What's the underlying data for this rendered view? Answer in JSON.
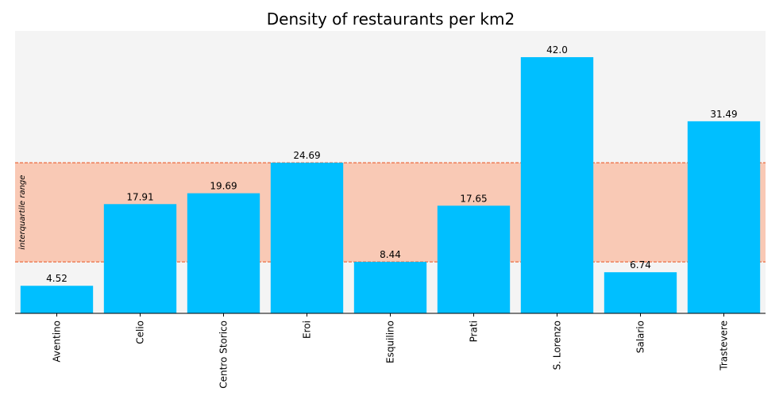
{
  "chart_data": {
    "type": "bar",
    "title": "Density of restaurants per km2",
    "xlabel": "",
    "ylabel": "",
    "categories": [
      "Aventino",
      "Celio",
      "Centro Storico",
      "Eroi",
      "Esquilino",
      "Prati",
      "S. Lorenzo",
      "Salario",
      "Trastevere"
    ],
    "values": [
      4.52,
      17.91,
      19.69,
      24.69,
      8.44,
      17.65,
      42.0,
      6.74,
      31.49
    ],
    "value_labels": [
      "4.52",
      "17.91",
      "19.69",
      "24.69",
      "8.44",
      "17.65",
      "42.0",
      "6.74",
      "31.49"
    ],
    "ylim": [
      0,
      46.3
    ],
    "grid": false,
    "y_axis_visible": false,
    "bar_color": "#00bfff",
    "background_color": "#f4f4f4",
    "band": {
      "label": "interquartile range",
      "low": 8.44,
      "high": 24.69,
      "fill_color": "#f9c9b5",
      "line_color": "#e8501c"
    }
  }
}
